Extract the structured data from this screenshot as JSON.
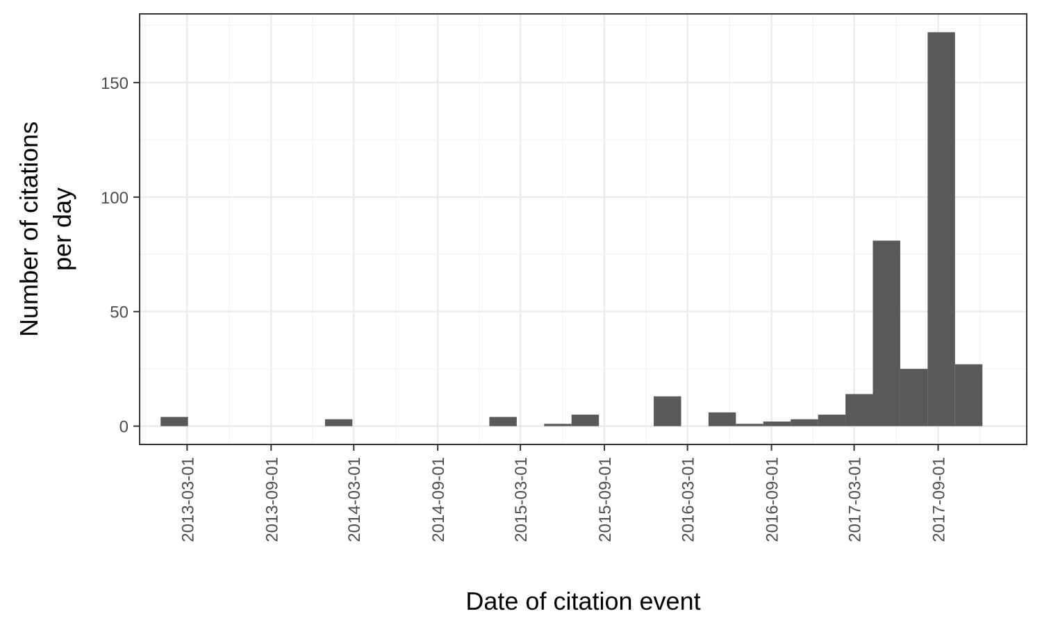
{
  "chart_data": {
    "type": "bar",
    "title": "",
    "xlabel": "Date of citation event",
    "ylabel_lines": [
      "Number of citations",
      "per day"
    ],
    "x_tick_labels": [
      "2013-03-01",
      "2013-09-01",
      "2014-03-01",
      "2014-09-01",
      "2015-03-01",
      "2015-09-01",
      "2016-03-01",
      "2016-09-01",
      "2017-03-01",
      "2017-09-01"
    ],
    "y_ticks": [
      0,
      50,
      100,
      150
    ],
    "y_tick_labels": [
      "0",
      "50",
      "100",
      "150"
    ],
    "ylim": [
      -8,
      180
    ],
    "xlim": [
      "2012-11-17",
      "2018-03-14"
    ],
    "bin_width_days": 60,
    "bars": [
      {
        "start": "2013-01-02",
        "end": "2013-03-03",
        "value": 4
      },
      {
        "start": "2013-12-28",
        "end": "2014-02-26",
        "value": 3
      },
      {
        "start": "2014-12-23",
        "end": "2015-02-21",
        "value": 4
      },
      {
        "start": "2015-04-22",
        "end": "2015-06-21",
        "value": 1
      },
      {
        "start": "2015-06-21",
        "end": "2015-08-20",
        "value": 5
      },
      {
        "start": "2015-12-18",
        "end": "2016-02-16",
        "value": 13
      },
      {
        "start": "2016-04-16",
        "end": "2016-06-15",
        "value": 6
      },
      {
        "start": "2016-06-15",
        "end": "2016-08-14",
        "value": 1
      },
      {
        "start": "2016-08-14",
        "end": "2016-10-13",
        "value": 2
      },
      {
        "start": "2016-10-13",
        "end": "2016-12-12",
        "value": 3
      },
      {
        "start": "2016-12-12",
        "end": "2017-02-10",
        "value": 5
      },
      {
        "start": "2017-02-10",
        "end": "2017-04-11",
        "value": 14
      },
      {
        "start": "2017-04-11",
        "end": "2017-06-10",
        "value": 81
      },
      {
        "start": "2017-06-10",
        "end": "2017-08-09",
        "value": 25
      },
      {
        "start": "2017-08-09",
        "end": "2017-10-08",
        "value": 172
      },
      {
        "start": "2017-10-08",
        "end": "2017-12-07",
        "value": 27
      }
    ],
    "grid": true,
    "legend": "none",
    "colors": {
      "bar": "#595959",
      "major_grid": "#ebebeb",
      "minor_grid": "#f2f2f2",
      "panel_border": "#333333",
      "tick_text": "#4d4d4d",
      "axis_title": "#000000"
    }
  }
}
